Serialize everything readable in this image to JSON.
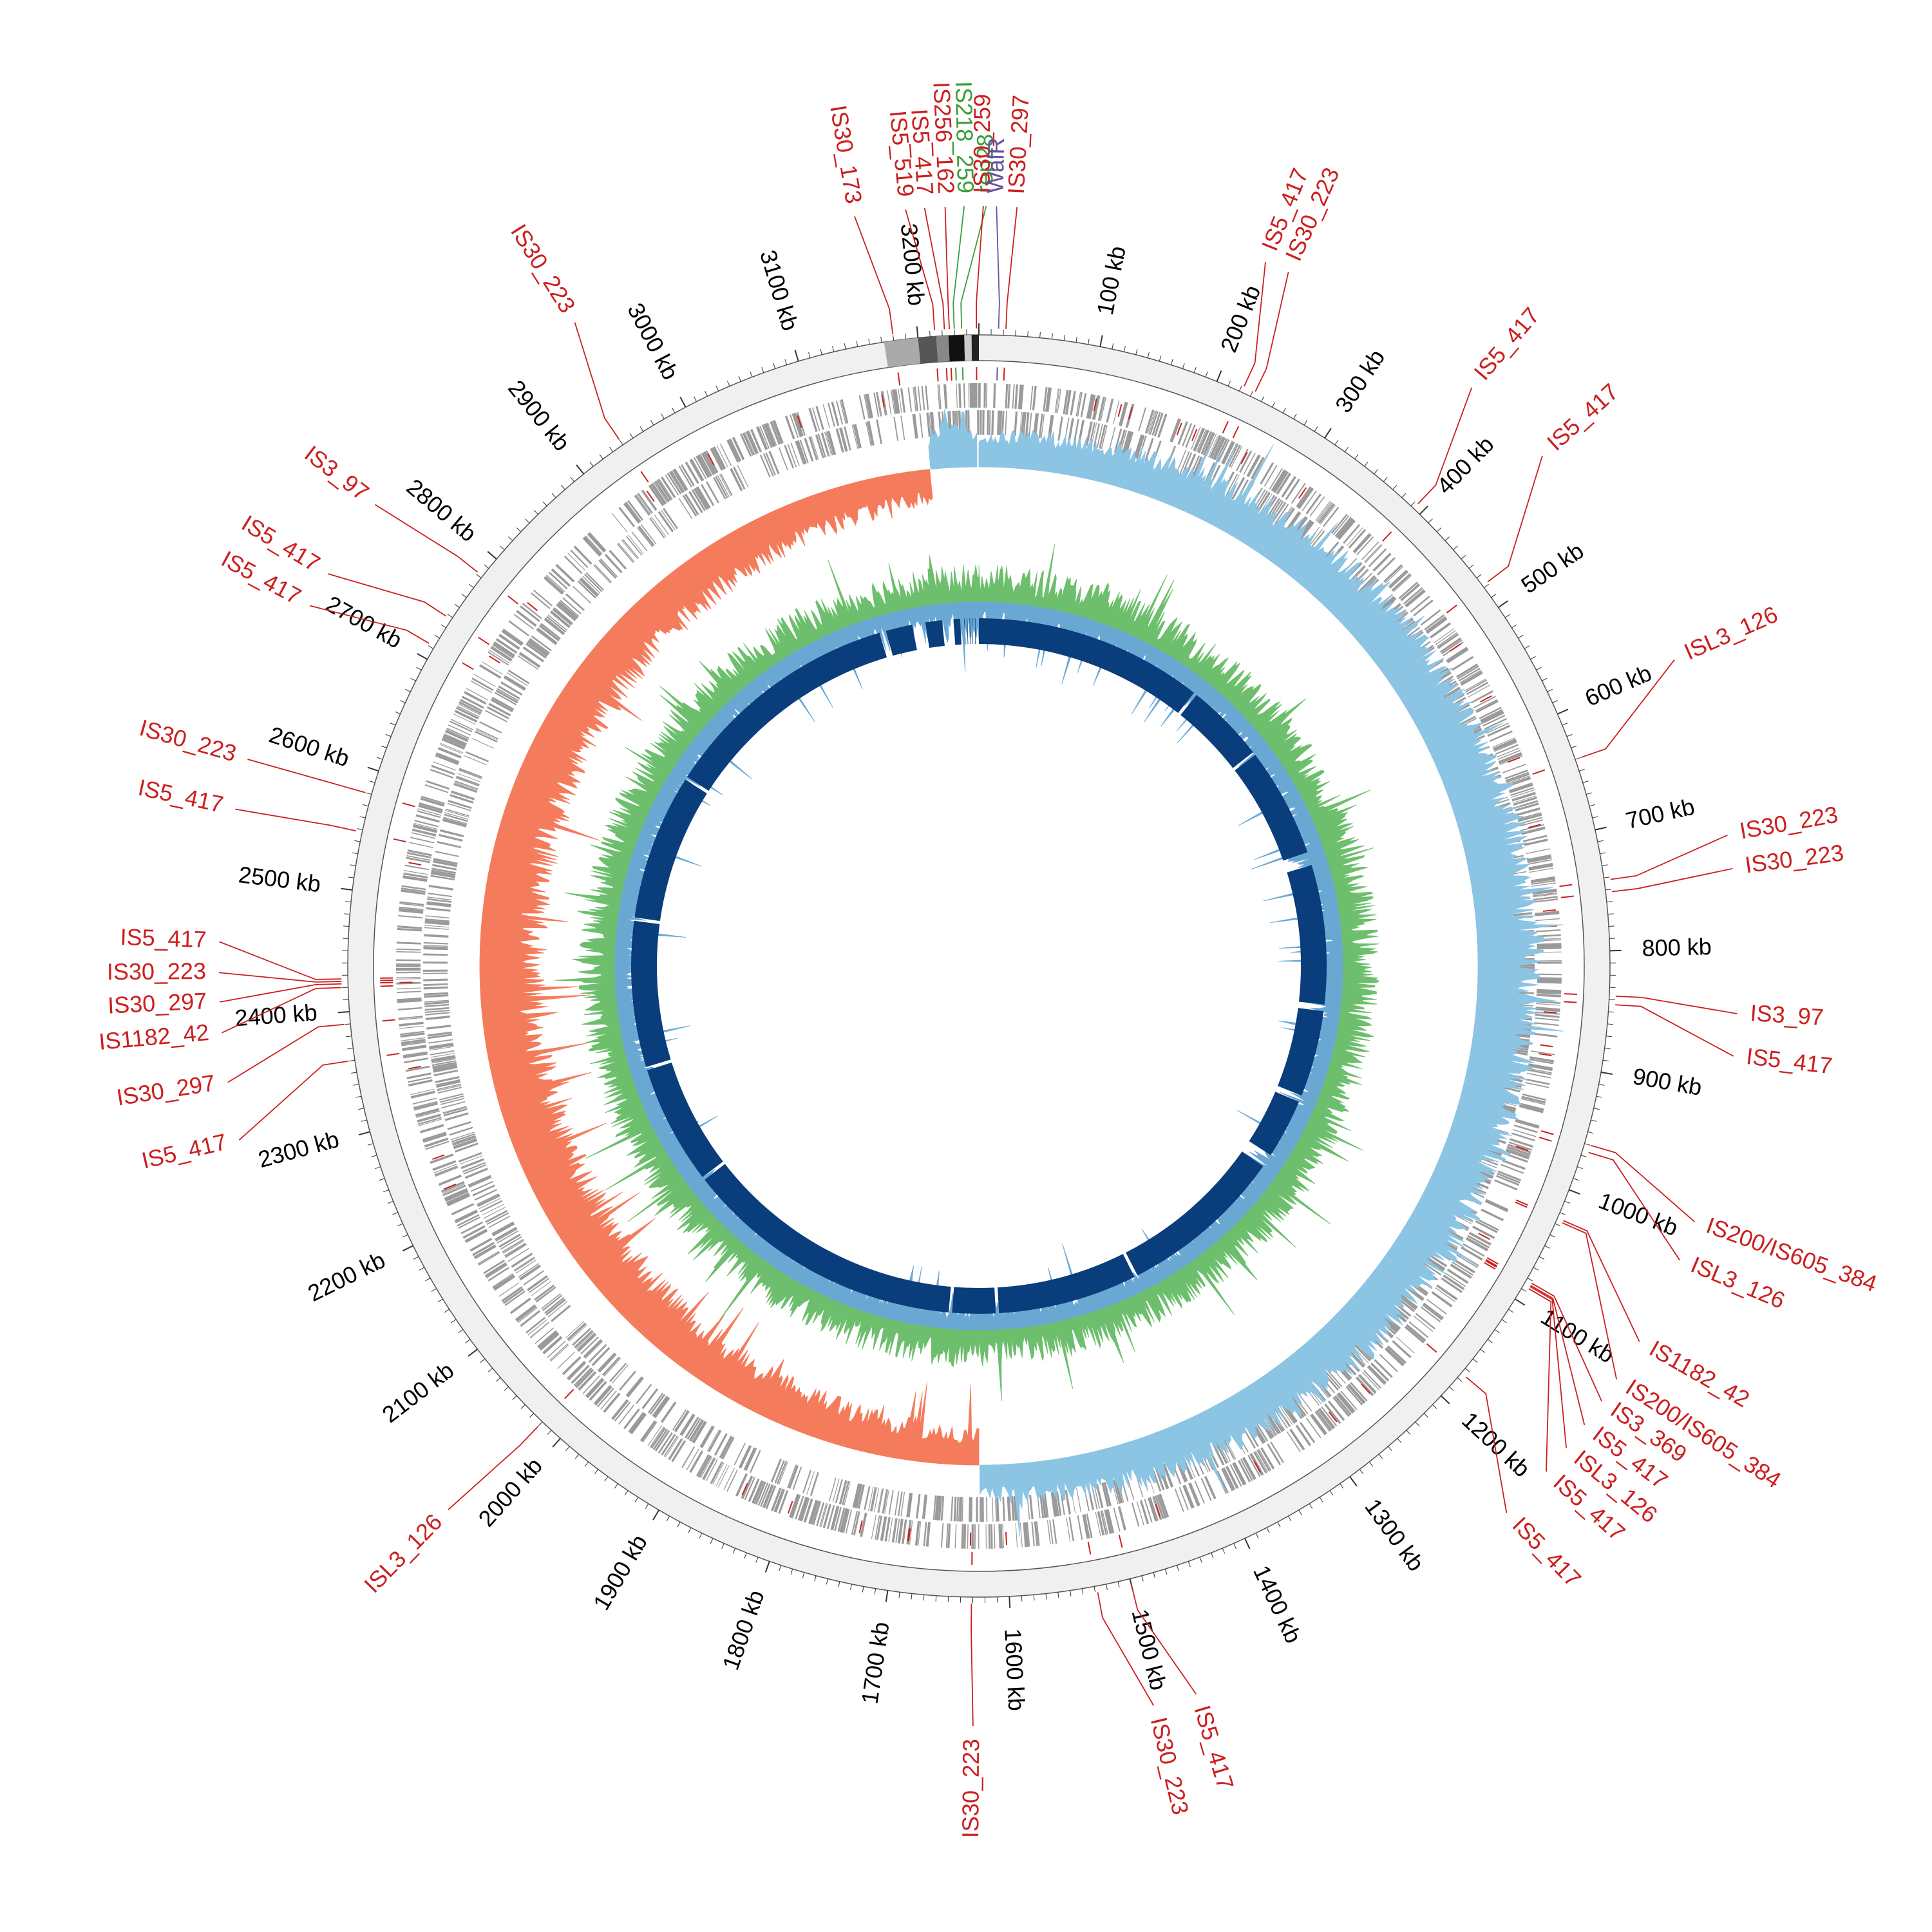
{
  "genome": {
    "size_kb": 3250,
    "start_offset_deg": 0
  },
  "colors": {
    "is_element": "#cc1f1f",
    "green_element": "#3a9e3a",
    "purple_element": "#6a4fa3",
    "outer_ring": "#f0f0f0",
    "cds": "#9a9a9a",
    "gc_skew_pos": "#8cc4e4",
    "gc_skew_neg": "#f47c5c",
    "gc_content_blue": "#6aa8d4",
    "gc_content_green": "#6dbf6d",
    "blast_ring": "#0a3d7c"
  },
  "axis": {
    "unit": "kb",
    "ticks": [
      {
        "kb": 100,
        "label": "100 kb"
      },
      {
        "kb": 200,
        "label": "200 kb"
      },
      {
        "kb": 300,
        "label": "300 kb"
      },
      {
        "kb": 400,
        "label": "400 kb"
      },
      {
        "kb": 500,
        "label": "500 kb"
      },
      {
        "kb": 600,
        "label": "600 kb"
      },
      {
        "kb": 700,
        "label": "700 kb"
      },
      {
        "kb": 800,
        "label": "800 kb"
      },
      {
        "kb": 900,
        "label": "900 kb"
      },
      {
        "kb": 1000,
        "label": "1000 kb"
      },
      {
        "kb": 1100,
        "label": "1100 kb"
      },
      {
        "kb": 1200,
        "label": "1200 kb"
      },
      {
        "kb": 1300,
        "label": "1300 kb"
      },
      {
        "kb": 1400,
        "label": "1400 kb"
      },
      {
        "kb": 1500,
        "label": "1500 kb"
      },
      {
        "kb": 1600,
        "label": "1600 kb"
      },
      {
        "kb": 1700,
        "label": "1700 kb"
      },
      {
        "kb": 1800,
        "label": "1800 kb"
      },
      {
        "kb": 1900,
        "label": "1900 kb"
      },
      {
        "kb": 2000,
        "label": "2000 kb"
      },
      {
        "kb": 2100,
        "label": "2100 kb"
      },
      {
        "kb": 2200,
        "label": "2200 kb"
      },
      {
        "kb": 2300,
        "label": "2300 kb"
      },
      {
        "kb": 2400,
        "label": "2400 kb"
      },
      {
        "kb": 2500,
        "label": "2500 kb"
      },
      {
        "kb": 2600,
        "label": "2600 kb"
      },
      {
        "kb": 2700,
        "label": "2700 kb"
      },
      {
        "kb": 2800,
        "label": "2800 kb"
      },
      {
        "kb": 2900,
        "label": "2900 kb"
      },
      {
        "kb": 3000,
        "label": "3000 kb"
      },
      {
        "kb": 3100,
        "label": "3100 kb"
      },
      {
        "kb": 3200,
        "label": "3200 kb"
      }
    ]
  },
  "features": [
    {
      "label": "IS30_173",
      "kb": 3180,
      "label_kb": 3165,
      "type": "is"
    },
    {
      "label": "IS5_519",
      "kb": 3214,
      "label_kb": 3200,
      "type": "is"
    },
    {
      "label": "IS5_417",
      "kb": 3222,
      "label_kb": 3213,
      "type": "is"
    },
    {
      "label": "IS256_162",
      "kb": 3226,
      "label_kb": 3227,
      "type": "is"
    },
    {
      "label": "IS218_259",
      "kb": 3230,
      "label_kb": 3240,
      "type": "green"
    },
    {
      "label": "rep28",
      "kb": 3236,
      "label_kb": 5,
      "type": "green"
    },
    {
      "label": "IS30_259",
      "kb": 3248,
      "label_kb": 3,
      "type": "is"
    },
    {
      "label": "WalR",
      "kb": 16,
      "label_kb": 12,
      "type": "purple"
    },
    {
      "label": "IS30_297",
      "kb": 22,
      "label_kb": 26,
      "type": "is"
    },
    {
      "label": "IS5_417",
      "kb": 222,
      "label_kb": 200,
      "type": "is"
    },
    {
      "label": "IS30_223",
      "kb": 232,
      "label_kb": 217,
      "type": "is"
    },
    {
      "label": "IS5_417",
      "kb": 393,
      "label_kb": 365,
      "type": "is"
    },
    {
      "label": "IS5_417",
      "kb": 478,
      "label_kb": 432,
      "type": "is"
    },
    {
      "label": "ISL3_126",
      "kb": 640,
      "label_kb": 598,
      "type": "is"
    },
    {
      "label": "IS30_223",
      "kb": 742,
      "label_kb": 723,
      "type": "is"
    },
    {
      "label": "IS30_223",
      "kb": 752,
      "label_kb": 746,
      "type": "is"
    },
    {
      "label": "IS3_97",
      "kb": 837,
      "label_kb": 845,
      "type": "is"
    },
    {
      "label": "IS5_417",
      "kb": 844,
      "label_kb": 874,
      "type": "is"
    },
    {
      "label": "IS200/IS605_384",
      "kb": 960,
      "label_kb": 990,
      "type": "is"
    },
    {
      "label": "ISL3_126",
      "kb": 966,
      "label_kb": 1018,
      "type": "is"
    },
    {
      "label": "IS1182_42",
      "kb": 1025,
      "label_kb": 1080,
      "type": "is"
    },
    {
      "label": "IS200/IS605_384",
      "kb": 1027,
      "label_kb": 1110,
      "type": "is"
    },
    {
      "label": "IS3_369",
      "kb": 1082,
      "label_kb": 1128,
      "type": "is"
    },
    {
      "label": "IS5_417",
      "kb": 1084,
      "label_kb": 1148,
      "type": "is"
    },
    {
      "label": "ISL3_126",
      "kb": 1085,
      "label_kb": 1168,
      "type": "is"
    },
    {
      "label": "IS5_417",
      "kb": 1087,
      "label_kb": 1189,
      "type": "is"
    },
    {
      "label": "IS5_417",
      "kb": 1175,
      "label_kb": 1228,
      "type": "is"
    },
    {
      "label": "IS5_417",
      "kb": 1500,
      "label_kb": 1475,
      "type": "is"
    },
    {
      "label": "IS30_223",
      "kb": 1528,
      "label_kb": 1505,
      "type": "is"
    },
    {
      "label": "IS30_223",
      "kb": 1631,
      "label_kb": 1629,
      "type": "is"
    },
    {
      "label": "ISL3_126",
      "kb": 2020,
      "label_kb": 2025,
      "type": "is"
    },
    {
      "label": "IS5_417",
      "kb": 2360,
      "label_kb": 2318,
      "type": "is"
    },
    {
      "label": "IS30_297",
      "kb": 2390,
      "label_kb": 2358,
      "type": "is"
    },
    {
      "label": "IS1182_42",
      "kb": 2420,
      "label_kb": 2392,
      "type": "is"
    },
    {
      "label": "IS30_297",
      "kb": 2423,
      "label_kb": 2413,
      "type": "is"
    },
    {
      "label": "IS30_223",
      "kb": 2425,
      "label_kb": 2433,
      "type": "is"
    },
    {
      "label": "IS5_417",
      "kb": 2427,
      "label_kb": 2454,
      "type": "is"
    },
    {
      "label": "IS5_417",
      "kb": 2548,
      "label_kb": 2545,
      "type": "is"
    },
    {
      "label": "IS30_223",
      "kb": 2580,
      "label_kb": 2580,
      "type": "is"
    },
    {
      "label": "IS5_417",
      "kb": 2712,
      "label_kb": 2693,
      "type": "is"
    },
    {
      "label": "IS5_417",
      "kb": 2738,
      "label_kb": 2718,
      "type": "is"
    },
    {
      "label": "IS3_97",
      "kb": 2782,
      "label_kb": 2775,
      "type": "is"
    },
    {
      "label": "IS30_223",
      "kb": 2940,
      "label_kb": 2960,
      "type": "is"
    }
  ],
  "inner_ring_gaps_kb": [
    [
      3222,
      3250
    ],
    [
      3195,
      3212
    ],
    [
      3150,
      3170
    ],
    [
      3100,
      3110
    ],
    [
      345,
      350
    ],
    [
      470,
      475
    ],
    [
      640,
      660
    ],
    [
      870,
      880
    ],
    [
      1010,
      1020
    ],
    [
      1110,
      1130
    ],
    [
      1380,
      1385
    ],
    [
      1595,
      1600
    ],
    [
      1665,
      1670
    ],
    [
      2095,
      2100
    ],
    [
      2280,
      2285
    ],
    [
      2505,
      2510
    ],
    [
      2730,
      2735
    ]
  ]
}
